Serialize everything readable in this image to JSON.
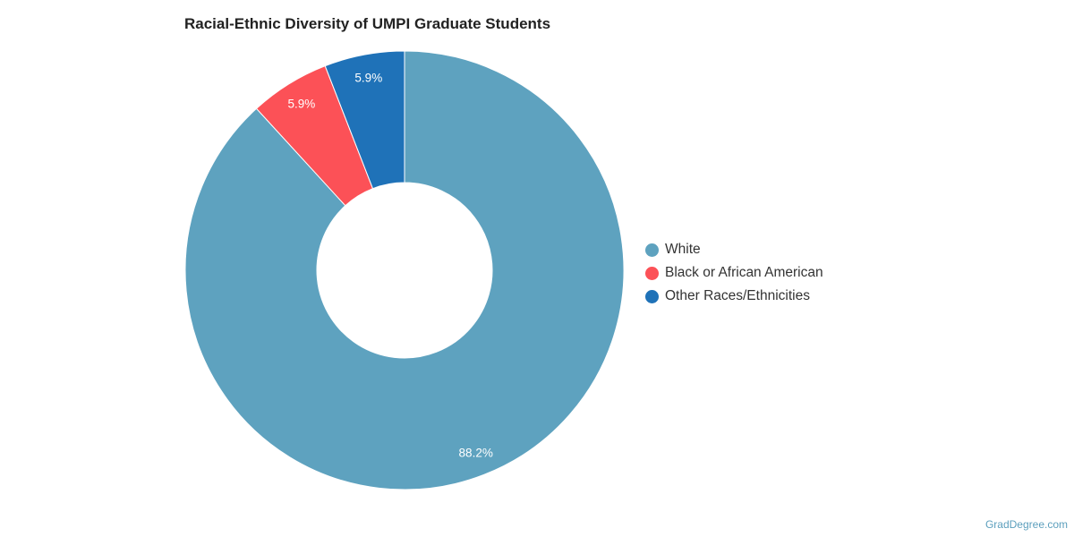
{
  "chart_data": {
    "type": "pie",
    "variant": "donut",
    "title": "Racial-Ethnic Diversity of UMPI Graduate Students",
    "categories": [
      "White",
      "Black or African American",
      "Other Races/Ethnicities"
    ],
    "values": [
      88.2,
      5.9,
      5.9
    ],
    "labels": [
      "88.2%",
      "5.9%",
      "5.9%"
    ],
    "colors": [
      "#5ea2bf",
      "#fc5157",
      "#1f72b8"
    ],
    "legend_position": "right",
    "start_angle": "top",
    "direction": "clockwise"
  },
  "credit": "GradDegree.com"
}
